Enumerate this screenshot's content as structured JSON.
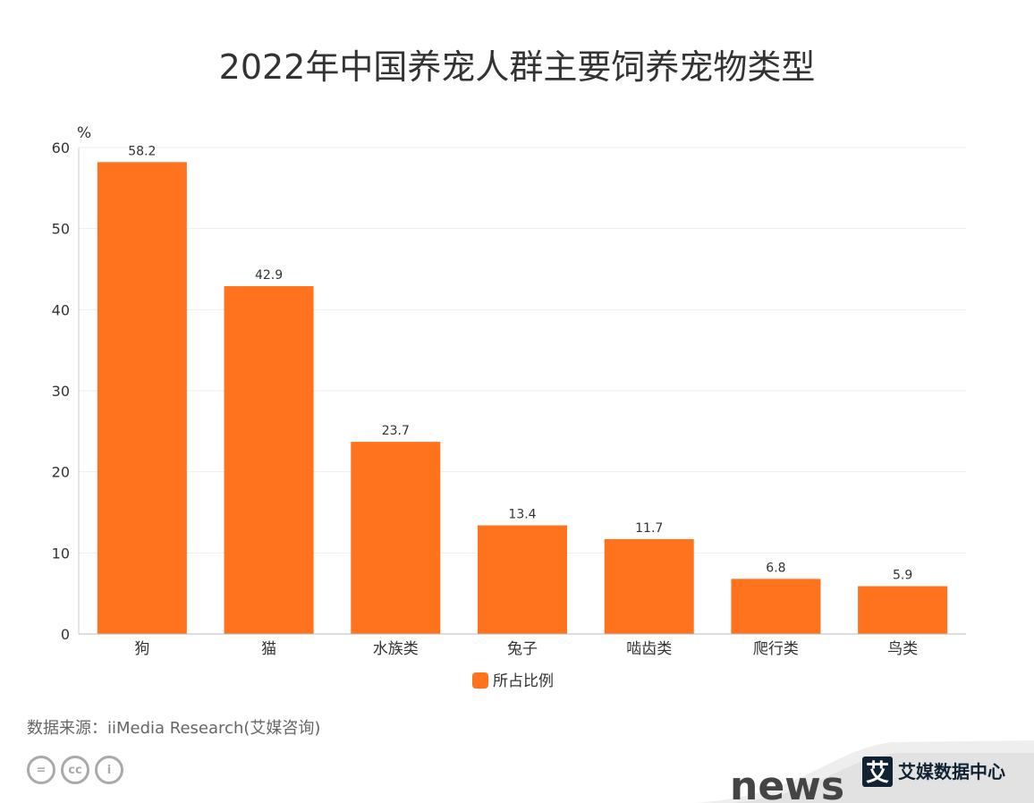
{
  "chart_data": {
    "type": "bar",
    "title": "2022年中国养宠人群主要饲养宠物类型",
    "ylabel": "%",
    "xlabel": "",
    "categories": [
      "狗",
      "猫",
      "水族类",
      "兔子",
      "啮齿类",
      "爬行类",
      "鸟类"
    ],
    "series": [
      {
        "name": "所占比例",
        "values": [
          58.2,
          42.9,
          23.7,
          13.4,
          11.7,
          6.8,
          5.9
        ],
        "color": "#ff721e"
      }
    ],
    "ylim": [
      0,
      60
    ],
    "yticks": [
      0,
      10,
      20,
      30,
      40,
      50,
      60
    ],
    "grid": true,
    "legend": "bottom-center"
  },
  "footer": {
    "source": "数据来源：iiMedia Research(艾媒咨询)",
    "license_icons": [
      "nd-icon",
      "cc-icon",
      "by-icon"
    ],
    "logo_text": "艾媒数据中心",
    "logo_mark": "艾",
    "watermark": "news"
  }
}
